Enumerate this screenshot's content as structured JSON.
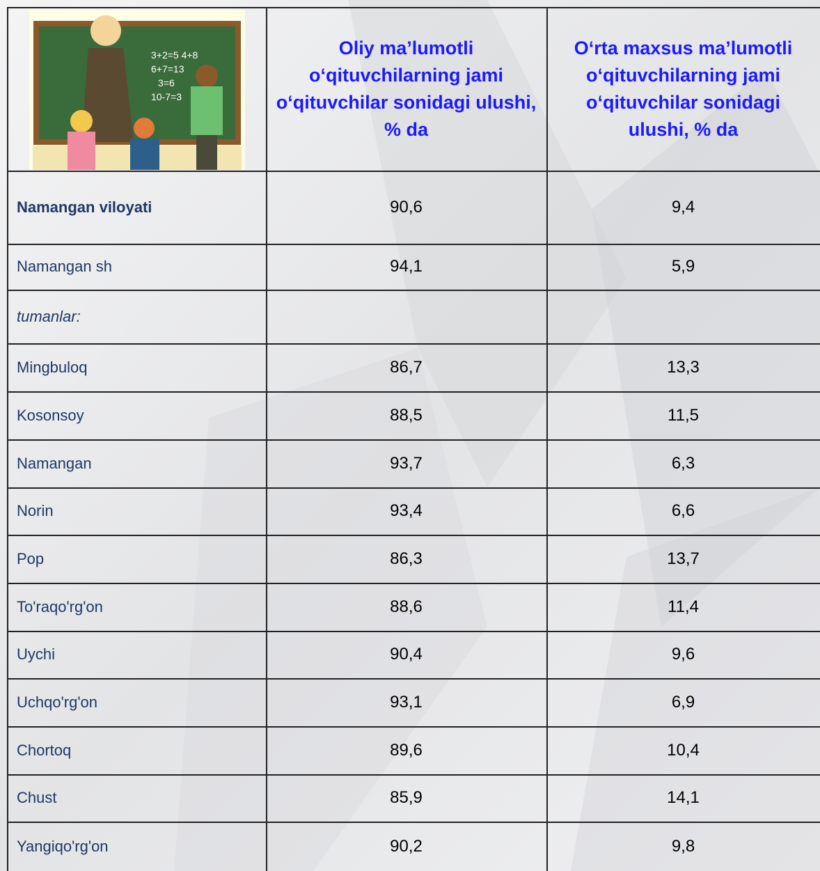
{
  "table": {
    "header": [
      "Oliy ma’lumotli o‘qituvchilarning jami o‘qituvchilar sonidagi ulushi, % da",
      "O‘rta maxsus ma’lumotli o‘qituvchilarning jami o‘qituvchilar sonidagi ulushi, % da"
    ],
    "rows": [
      {
        "name": "Namangan viloyati",
        "values": [
          "90,6",
          "9,4"
        ]
      },
      {
        "name": "Namangan sh",
        "values": [
          "94,1",
          "5,9"
        ]
      },
      {
        "name": "tumanlar:"
      },
      {
        "name": "Mingbuloq",
        "values": [
          "86,7",
          "13,3"
        ]
      },
      {
        "name": "Kosonsoy",
        "values": [
          "88,5",
          "11,5"
        ]
      },
      {
        "name": "Namangan",
        "values": [
          "93,7",
          "6,3"
        ]
      },
      {
        "name": "Norin",
        "values": [
          "93,4",
          "6,6"
        ]
      },
      {
        "name": "Pop",
        "values": [
          "86,3",
          "13,7"
        ]
      },
      {
        "name": "To'raqo'rg'on",
        "values": [
          "88,6",
          "11,4"
        ]
      },
      {
        "name": "Uychi",
        "values": [
          "90,4",
          "9,6"
        ]
      },
      {
        "name": "Uchqo'rg'on",
        "values": [
          "93,1",
          "6,9"
        ]
      },
      {
        "name": "Chortoq",
        "values": [
          "89,6",
          "10,4"
        ]
      },
      {
        "name": "Chust",
        "values": [
          "85,9",
          "14,1"
        ]
      },
      {
        "name": "Yangiqo'rg'on",
        "values": [
          "90,2",
          "9,8"
        ]
      }
    ]
  }
}
